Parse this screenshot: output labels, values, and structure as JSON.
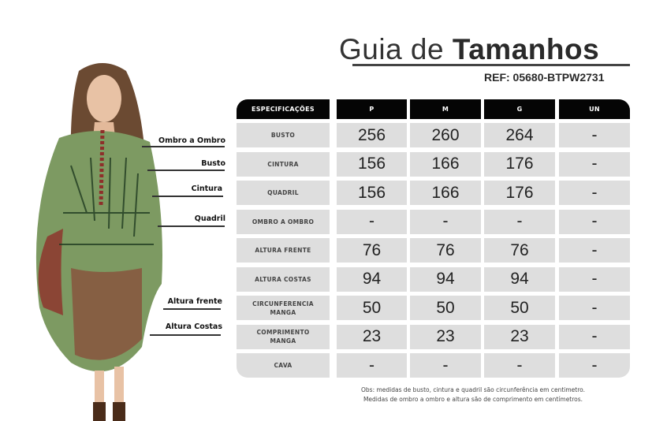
{
  "title": {
    "light": "Guia de",
    "bold": "Tamanhos"
  },
  "ref": "REF: 05680-BTPW2731",
  "table": {
    "headers": [
      "ESPECIFICAÇÕES",
      "P",
      "M",
      "G",
      "UN"
    ],
    "rows": [
      {
        "spec": "BUSTO",
        "values": [
          "256",
          "260",
          "264",
          "-"
        ]
      },
      {
        "spec": "CINTURA",
        "values": [
          "156",
          "166",
          "176",
          "-"
        ]
      },
      {
        "spec": "QUADRIL",
        "values": [
          "156",
          "166",
          "176",
          "-"
        ]
      },
      {
        "spec": "OMBRO A OMBRO",
        "values": [
          "-",
          "-",
          "-",
          "-"
        ]
      },
      {
        "spec": "ALTURA FRENTE",
        "values": [
          "76",
          "76",
          "76",
          "-"
        ]
      },
      {
        "spec": "ALTURA COSTAS",
        "values": [
          "94",
          "94",
          "94",
          "-"
        ]
      },
      {
        "spec": "CIRCUNFERENCIA MANGA",
        "values": [
          "50",
          "50",
          "50",
          "-"
        ]
      },
      {
        "spec": "COMPRIMENTO MANGA",
        "values": [
          "23",
          "23",
          "23",
          "-"
        ]
      },
      {
        "spec": "CAVA",
        "values": [
          "-",
          "-",
          "-",
          "-"
        ]
      }
    ]
  },
  "measure_labels": [
    "Ombro a Ombro",
    "Busto",
    "Cintura",
    "Quadril",
    "Altura frente",
    "Altura Costas"
  ],
  "notes": [
    "Obs: medidas de busto, cintura e quadril são circunferência em centimetro.",
    "Medidas de ombro a ombro e altura são de comprimento em centímetros."
  ],
  "colors": {
    "header": "#050505",
    "cell": "#dedede",
    "garment_green": "#7d9a62",
    "garment_red": "#8e2f2a"
  }
}
